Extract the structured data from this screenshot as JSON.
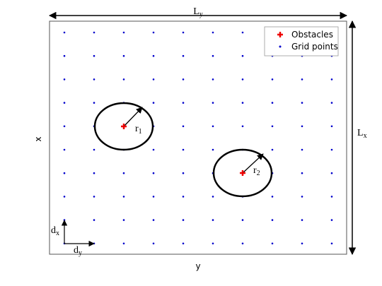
{
  "diagram": {
    "domain_labels": {
      "width": {
        "main": "L",
        "sub": "y"
      },
      "height": {
        "main": "L",
        "sub": "x"
      },
      "x_axis": "x",
      "y_axis": "y"
    },
    "spacing_labels": {
      "dx": {
        "main": "d",
        "sub": "x"
      },
      "dy": {
        "main": "d",
        "sub": "y"
      }
    },
    "obstacles": [
      {
        "radius_label": {
          "main": "r",
          "sub": "1"
        }
      },
      {
        "radius_label": {
          "main": "r",
          "sub": "2"
        }
      }
    ],
    "legend": [
      "Obstacles",
      "Grid points"
    ]
  }
}
